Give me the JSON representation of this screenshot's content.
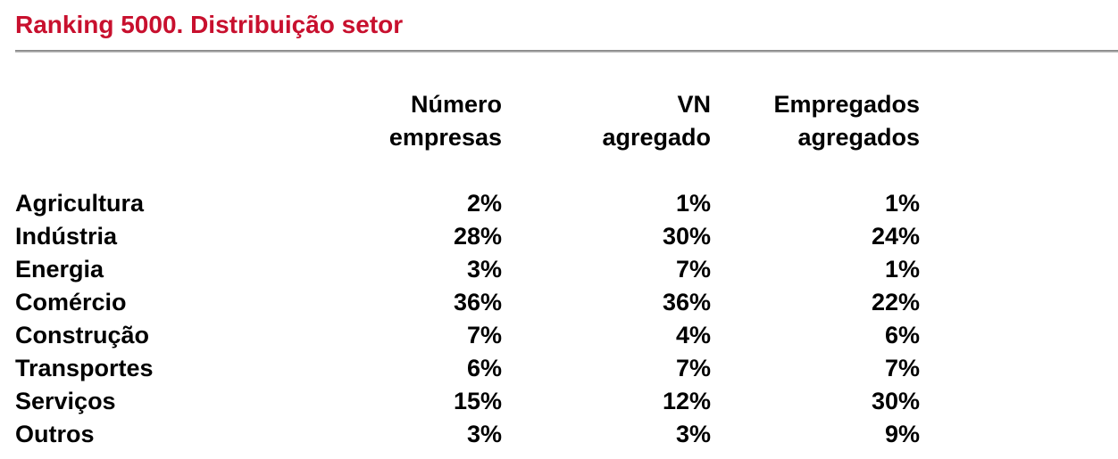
{
  "title": "Ranking 5000. Distribuição setor",
  "accent_color": "#C8102E",
  "divider_color": "#9a9a9a",
  "table": {
    "columns": {
      "label": "",
      "numero": "Número\nempresas",
      "vn": "VN\nagregado",
      "empregados": "Empregados\nagregados"
    },
    "rows": [
      {
        "label": "Agricultura",
        "numero": "2%",
        "vn": "1%",
        "empregados": "1%"
      },
      {
        "label": "Indústria",
        "numero": "28%",
        "vn": "30%",
        "empregados": "24%"
      },
      {
        "label": "Energia",
        "numero": "3%",
        "vn": "7%",
        "empregados": "1%"
      },
      {
        "label": "Comércio",
        "numero": "36%",
        "vn": "36%",
        "empregados": "22%"
      },
      {
        "label": "Construção",
        "numero": "7%",
        "vn": "4%",
        "empregados": "6%"
      },
      {
        "label": "Transportes",
        "numero": "6%",
        "vn": "7%",
        "empregados": "7%"
      },
      {
        "label": "Serviços",
        "numero": "15%",
        "vn": "12%",
        "empregados": "30%"
      },
      {
        "label": "Outros",
        "numero": "3%",
        "vn": "3%",
        "empregados": "9%"
      }
    ]
  }
}
